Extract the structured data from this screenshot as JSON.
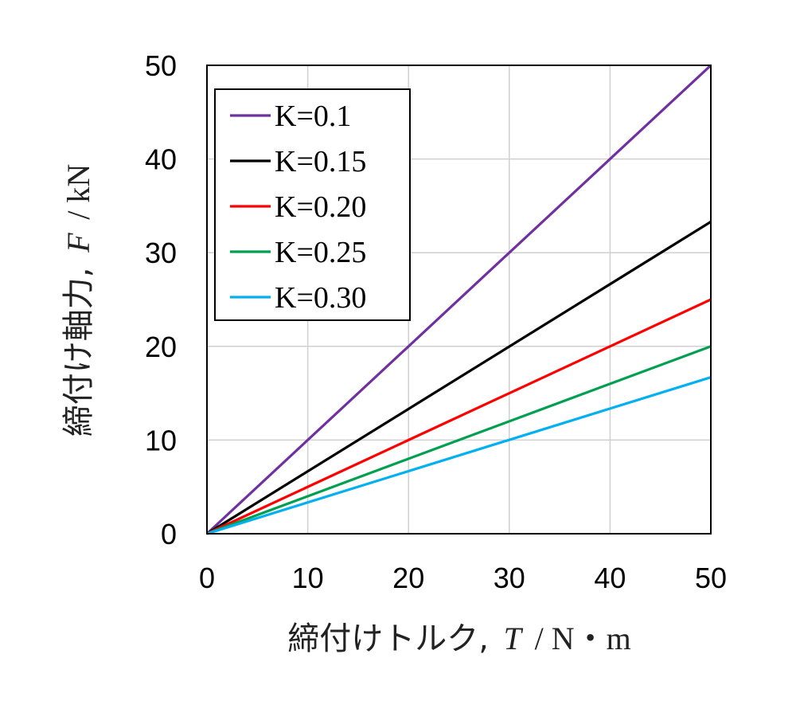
{
  "chart_data": {
    "type": "line",
    "xlim": [
      0,
      50
    ],
    "ylim": [
      0,
      50
    ],
    "xticks": [
      0,
      10,
      20,
      30,
      40,
      50
    ],
    "yticks": [
      0,
      10,
      20,
      30,
      40,
      50
    ],
    "grid": true,
    "legend_position": "top-left",
    "xlabel": {
      "prefix": "締付けトルク,",
      "symbol": "T",
      "unit": "/ N・m"
    },
    "ylabel": {
      "prefix": "締付け軸力,",
      "symbol": "F",
      "unit": "/ kN"
    },
    "series": [
      {
        "name": "K=0.1",
        "color": "#7030a0",
        "x": [
          0,
          50
        ],
        "y": [
          0,
          50
        ]
      },
      {
        "name": "K=0.15",
        "color": "#000000",
        "x": [
          0,
          50
        ],
        "y": [
          0,
          33.3
        ]
      },
      {
        "name": "K=0.20",
        "color": "#ff0000",
        "x": [
          0,
          50
        ],
        "y": [
          0,
          25
        ]
      },
      {
        "name": "K=0.25",
        "color": "#00a050",
        "x": [
          0,
          50
        ],
        "y": [
          0,
          20
        ]
      },
      {
        "name": "K=0.30",
        "color": "#00b0f0",
        "x": [
          0,
          50
        ],
        "y": [
          0,
          16.7
        ]
      }
    ]
  }
}
